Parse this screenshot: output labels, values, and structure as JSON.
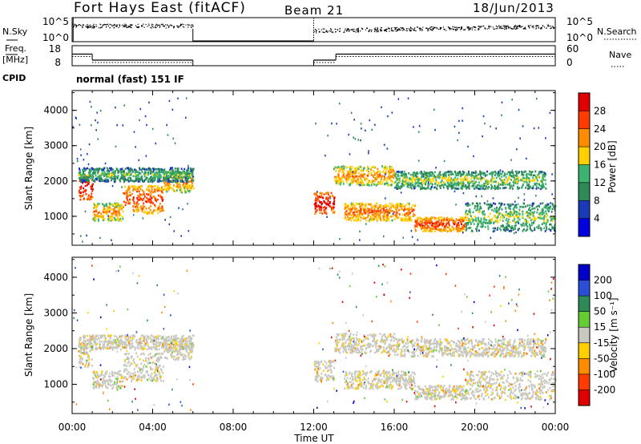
{
  "chart_data": {
    "type": "heatmap",
    "header": {
      "station": "Fort Hays East (fitACF)",
      "beam": "Beam 21",
      "date": "18/Jun/2013",
      "cpid_text": "normal (fast) 151 IF"
    },
    "noise_panel": {
      "left_label": "N.Sky",
      "left_ticks": [
        "10^5",
        "10^0"
      ],
      "right_label": "N.Search",
      "right_ticks": [
        "10^5",
        "10^0"
      ]
    },
    "freq_panel": {
      "left_label_1": "Freq.",
      "left_label_2": "[MHz]",
      "left_ticks": [
        "18",
        "8"
      ],
      "right_label": "Nave",
      "right_ticks": [
        "60",
        "0"
      ],
      "freq_mhz": [
        {
          "t0": 0.0,
          "t1": 1.0,
          "v": 13.8
        },
        {
          "t0": 1.0,
          "t1": 6.0,
          "v": 10.8
        },
        {
          "t0": 12.0,
          "t1": 13.1,
          "v": 10.8
        },
        {
          "t0": 13.1,
          "t1": 24.0,
          "v": 13.8
        }
      ]
    },
    "cpid_label": "CPID",
    "x_ticks": [
      "00:00",
      "04:00",
      "08:00",
      "12:00",
      "16:00",
      "20:00",
      "00:00"
    ],
    "xlabel": "Time UT",
    "xlim_hours": [
      0,
      24
    ],
    "ylim_km": [
      180,
      4560
    ],
    "y_ticks": [
      "4000",
      "3000",
      "2000",
      "1000"
    ],
    "ylabel": "Slant Range [km]",
    "data_gap_hours": [
      6.0,
      12.0
    ],
    "power_panel": {
      "colorbar_title": "Power [dB]",
      "scale": [
        "28",
        "24",
        "20",
        "16",
        "12",
        "8",
        "4"
      ],
      "colors": [
        "#e00000",
        "#ff3c00",
        "#ff8c00",
        "#ffd000",
        "#3cb371",
        "#2e8b57",
        "#1a3ab8",
        "#0000e0"
      ],
      "bands": [
        {
          "t0": 0.3,
          "t1": 1.0,
          "r0": 1500,
          "r1": 2200,
          "db": 26
        },
        {
          "t0": 1.0,
          "t1": 2.5,
          "r0": 900,
          "r1": 1400,
          "db": 18
        },
        {
          "t0": 2.5,
          "t1": 4.5,
          "r0": 1100,
          "r1": 1900,
          "db": 22
        },
        {
          "t0": 4.5,
          "t1": 6.0,
          "r0": 1700,
          "r1": 2300,
          "db": 18
        },
        {
          "t0": 0.3,
          "t1": 6.0,
          "r0": 2000,
          "r1": 2400,
          "db": 10
        },
        {
          "t0": 12.0,
          "t1": 13.0,
          "r0": 1100,
          "r1": 1700,
          "db": 26
        },
        {
          "t0": 13.0,
          "t1": 16.0,
          "r0": 1900,
          "r1": 2450,
          "db": 18
        },
        {
          "t0": 16.0,
          "t1": 23.5,
          "r0": 1800,
          "r1": 2300,
          "db": 12
        },
        {
          "t0": 13.5,
          "t1": 17.0,
          "r0": 900,
          "r1": 1400,
          "db": 20
        },
        {
          "t0": 17.0,
          "t1": 19.5,
          "r0": 600,
          "r1": 1000,
          "db": 22
        },
        {
          "t0": 19.5,
          "t1": 24.0,
          "r0": 600,
          "r1": 1400,
          "db": 12
        }
      ]
    },
    "velocity_panel": {
      "colorbar_title": "Velocity [m s⁻¹]",
      "scale": [
        "200",
        "100",
        "50",
        "15",
        "-15",
        "-50",
        "-100",
        "-200"
      ],
      "colors": [
        "#0000c8",
        "#2a4fd6",
        "#2e8b57",
        "#66cc33",
        "#c8c8c0",
        "#ffd000",
        "#ff8c00",
        "#ff3c00",
        "#e00000"
      ],
      "ground_scatter_color": "#c8c8c0"
    }
  }
}
